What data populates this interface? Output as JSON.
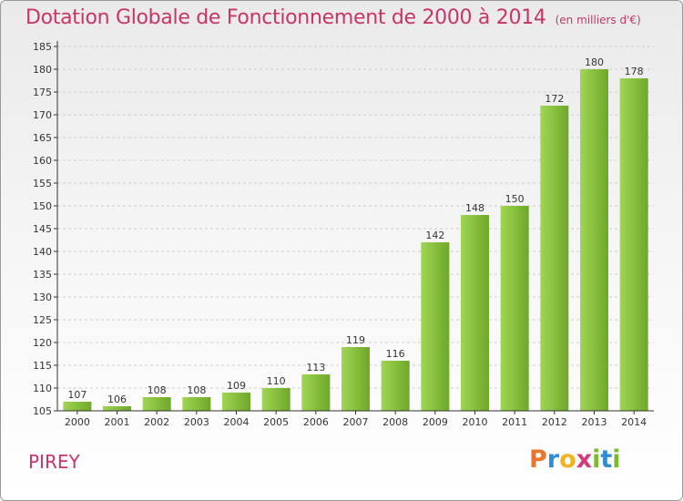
{
  "header": {
    "title": "Dotation Globale de Fonctionnement de 2000 à 2014",
    "subtitle": "(en milliers d'€)"
  },
  "footer": {
    "commune": "PIREY",
    "logo_letters": [
      "P",
      "r",
      "o",
      "x",
      "i",
      "t",
      "i"
    ],
    "logo_colors": [
      "#e8762d",
      "#2f8fd0",
      "#f0b323",
      "#d23b7a",
      "#7dbb2e",
      "#2f8fd0",
      "#7dbb2e"
    ]
  },
  "colors": {
    "bar_light": "#9fd653",
    "bar_dark": "#6ea72a",
    "grid": "#cccccc",
    "axis": "#333333",
    "text": "#333333",
    "accent": "#c8336a"
  },
  "chart_data": {
    "type": "bar",
    "title": "Dotation Globale de Fonctionnement de 2000 à 2014",
    "subtitle": "(en milliers d'€)",
    "xlabel": "",
    "ylabel": "",
    "categories": [
      "2000",
      "2001",
      "2002",
      "2003",
      "2004",
      "2005",
      "2006",
      "2007",
      "2008",
      "2009",
      "2010",
      "2011",
      "2012",
      "2013",
      "2014"
    ],
    "values": [
      107,
      106,
      108,
      108,
      109,
      110,
      113,
      119,
      116,
      142,
      148,
      150,
      172,
      180,
      178
    ],
    "ylim": [
      105,
      185
    ],
    "yticks": [
      105,
      110,
      115,
      120,
      125,
      130,
      135,
      140,
      145,
      150,
      155,
      160,
      165,
      170,
      175,
      180,
      185
    ],
    "grid": true,
    "legend": "none"
  }
}
